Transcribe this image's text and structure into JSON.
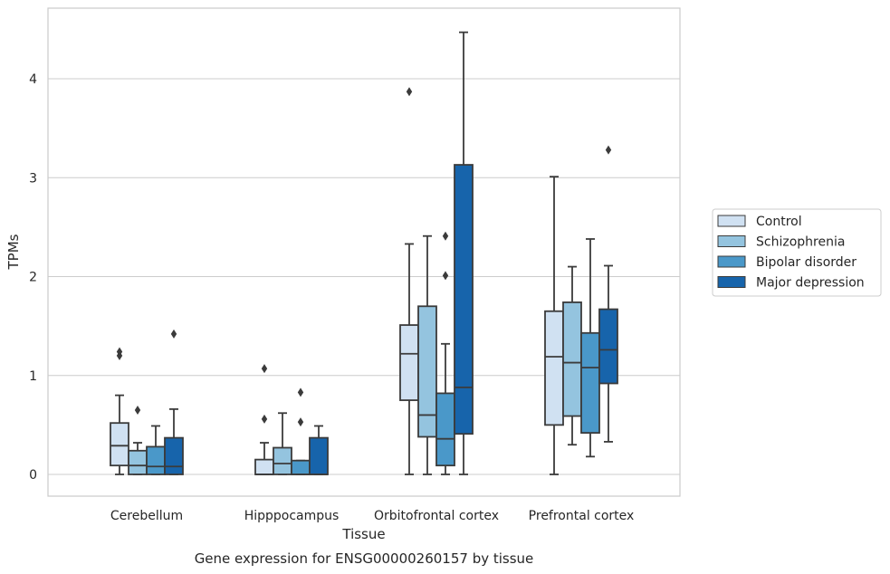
{
  "caption": "Gene expression for ENSG00000260157 by tissue",
  "chart_data": {
    "type": "box",
    "xlabel": "Tissue",
    "ylabel": "TPMs",
    "categories": [
      "Cerebellum",
      "Hipppocampus",
      "Orbitofrontal cortex",
      "Prefrontal cortex"
    ],
    "ylim": [
      -0.2,
      4.7
    ],
    "yticks": [
      0,
      1,
      2,
      3,
      4
    ],
    "grid": "horizontal",
    "legend_position": "right",
    "series": [
      {
        "name": "Control",
        "color": "#d0e1f2",
        "boxes": [
          {
            "category": "Cerebellum",
            "whisker_low": 0.0,
            "q1": 0.09,
            "median": 0.29,
            "q3": 0.52,
            "whisker_high": 0.8,
            "outliers": [
              1.2,
              1.24
            ]
          },
          {
            "category": "Hipppocampus",
            "whisker_low": 0.0,
            "q1": 0.0,
            "median": 0.0,
            "q3": 0.15,
            "whisker_high": 0.32,
            "outliers": [
              0.56,
              1.07
            ]
          },
          {
            "category": "Orbitofrontal cortex",
            "whisker_low": 0.0,
            "q1": 0.75,
            "median": 1.22,
            "q3": 1.51,
            "whisker_high": 2.33,
            "outliers": [
              3.87
            ]
          },
          {
            "category": "Prefrontal cortex",
            "whisker_low": 0.0,
            "q1": 0.5,
            "median": 1.19,
            "q3": 1.65,
            "whisker_high": 3.01,
            "outliers": []
          }
        ]
      },
      {
        "name": "Schizophrenia",
        "color": "#94c4df",
        "boxes": [
          {
            "category": "Cerebellum",
            "whisker_low": 0.0,
            "q1": 0.0,
            "median": 0.09,
            "q3": 0.24,
            "whisker_high": 0.32,
            "outliers": [
              0.65
            ]
          },
          {
            "category": "Hipppocampus",
            "whisker_low": 0.0,
            "q1": 0.0,
            "median": 0.11,
            "q3": 0.27,
            "whisker_high": 0.62,
            "outliers": []
          },
          {
            "category": "Orbitofrontal cortex",
            "whisker_low": 0.0,
            "q1": 0.38,
            "median": 0.6,
            "q3": 1.7,
            "whisker_high": 2.41,
            "outliers": []
          },
          {
            "category": "Prefrontal cortex",
            "whisker_low": 0.3,
            "q1": 0.59,
            "median": 1.13,
            "q3": 1.74,
            "whisker_high": 2.1,
            "outliers": []
          }
        ]
      },
      {
        "name": "Bipolar disorder",
        "color": "#4a98c9",
        "boxes": [
          {
            "category": "Cerebellum",
            "whisker_low": 0.0,
            "q1": 0.0,
            "median": 0.08,
            "q3": 0.28,
            "whisker_high": 0.49,
            "outliers": []
          },
          {
            "category": "Hipppocampus",
            "whisker_low": 0.0,
            "q1": 0.0,
            "median": 0.0,
            "q3": 0.14,
            "whisker_high": 0.14,
            "outliers": [
              0.53,
              0.83
            ]
          },
          {
            "category": "Orbitofrontal cortex",
            "whisker_low": 0.0,
            "q1": 0.09,
            "median": 0.36,
            "q3": 0.82,
            "whisker_high": 1.32,
            "outliers": [
              2.01,
              2.41
            ]
          },
          {
            "category": "Prefrontal cortex",
            "whisker_low": 0.18,
            "q1": 0.42,
            "median": 1.08,
            "q3": 1.43,
            "whisker_high": 2.38,
            "outliers": []
          }
        ]
      },
      {
        "name": "Major depression",
        "color": "#1764ab",
        "boxes": [
          {
            "category": "Cerebellum",
            "whisker_low": 0.0,
            "q1": 0.0,
            "median": 0.08,
            "q3": 0.37,
            "whisker_high": 0.66,
            "outliers": [
              1.42
            ]
          },
          {
            "category": "Hipppocampus",
            "whisker_low": 0.0,
            "q1": 0.0,
            "median": 0.0,
            "q3": 0.37,
            "whisker_high": 0.49,
            "outliers": []
          },
          {
            "category": "Orbitofrontal cortex",
            "whisker_low": 0.0,
            "q1": 0.41,
            "median": 0.88,
            "q3": 3.13,
            "whisker_high": 4.47,
            "outliers": []
          },
          {
            "category": "Prefrontal cortex",
            "whisker_low": 0.33,
            "q1": 0.92,
            "median": 1.26,
            "q3": 1.67,
            "whisker_high": 2.11,
            "outliers": [
              3.28
            ]
          }
        ]
      }
    ]
  }
}
